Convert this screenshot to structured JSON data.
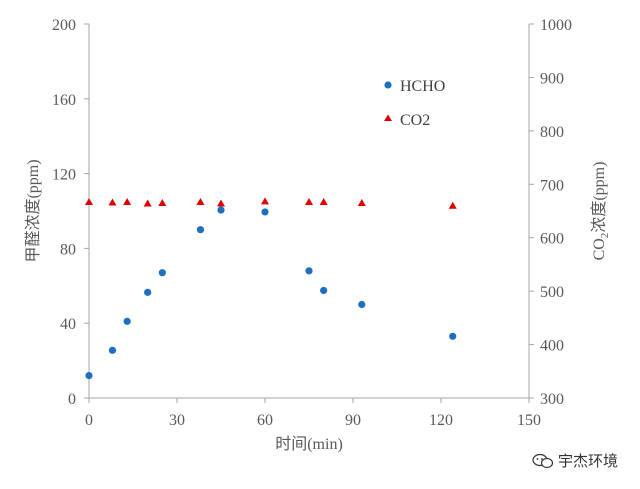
{
  "chart_data": {
    "type": "scatter",
    "xlabel": "时间(min)",
    "ylabel": "甲醛浓度(ppm)",
    "y2label": "CO2浓度(ppm)",
    "xlim": [
      0,
      150
    ],
    "ylim": [
      0,
      200
    ],
    "y2lim": [
      300,
      1000
    ],
    "xticks": [
      "0",
      "30",
      "60",
      "90",
      "120",
      "150"
    ],
    "yticks": [
      "0",
      "40",
      "80",
      "120",
      "160",
      "200"
    ],
    "y2ticks": [
      "300",
      "400",
      "500",
      "600",
      "700",
      "800",
      "900",
      "1000"
    ],
    "grid": false,
    "legend_position": "top-right inside plot",
    "series": [
      {
        "name": "HCHO",
        "axis": "left",
        "marker": "circle",
        "color": "#1F6FBF",
        "points": [
          {
            "x": 0,
            "y": 12
          },
          {
            "x": 8,
            "y": 25.5
          },
          {
            "x": 13,
            "y": 41
          },
          {
            "x": 20,
            "y": 56.5
          },
          {
            "x": 25,
            "y": 67
          },
          {
            "x": 38,
            "y": 90
          },
          {
            "x": 45,
            "y": 100.5
          },
          {
            "x": 60,
            "y": 99.5
          },
          {
            "x": 75,
            "y": 68
          },
          {
            "x": 80,
            "y": 57.5
          },
          {
            "x": 93,
            "y": 50
          },
          {
            "x": 124,
            "y": 33
          }
        ]
      },
      {
        "name": "CO2",
        "axis": "right",
        "marker": "triangle",
        "color": "#E00000",
        "points": [
          {
            "x": 0,
            "y": 666
          },
          {
            "x": 8,
            "y": 665
          },
          {
            "x": 13,
            "y": 666
          },
          {
            "x": 20,
            "y": 663
          },
          {
            "x": 25,
            "y": 664
          },
          {
            "x": 38,
            "y": 666
          },
          {
            "x": 45,
            "y": 663
          },
          {
            "x": 60,
            "y": 667
          },
          {
            "x": 75,
            "y": 666
          },
          {
            "x": 80,
            "y": 666
          },
          {
            "x": 93,
            "y": 664
          },
          {
            "x": 124,
            "y": 659
          }
        ]
      }
    ]
  },
  "watermark": {
    "text": "宇杰环境",
    "icon": "wechat-icon"
  }
}
